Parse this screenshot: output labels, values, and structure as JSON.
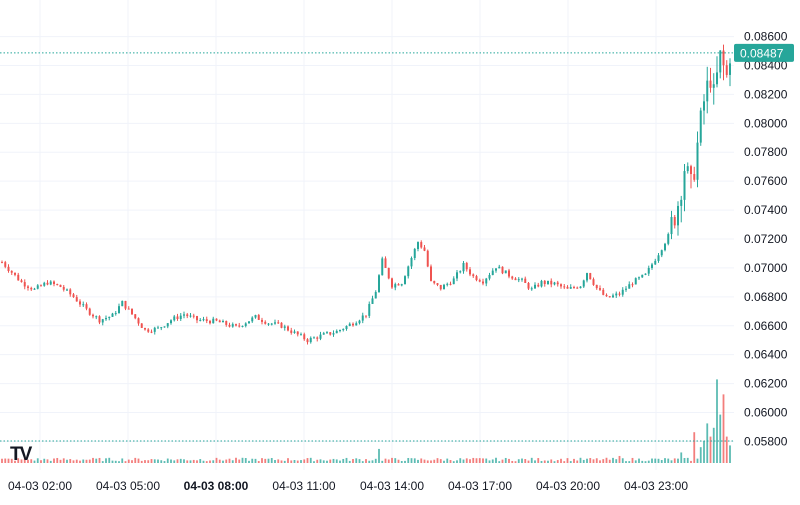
{
  "chart_data": {
    "type": "candlestick",
    "symbol_logo_text": "TV",
    "last_price_label": "0.08487",
    "last_price": 0.08487,
    "ylim": [
      0.0572,
      0.0868
    ],
    "y_ticks": [
      "0.08600",
      "0.08400",
      "0.08200",
      "0.08000",
      "0.07800",
      "0.07600",
      "0.07400",
      "0.07200",
      "0.07000",
      "0.06800",
      "0.06600",
      "0.06400",
      "0.06200",
      "0.06000",
      "0.05800"
    ],
    "x_ticks": [
      {
        "label": "04-03 02:00",
        "bold": false
      },
      {
        "label": "04-03 05:00",
        "bold": false
      },
      {
        "label": "04-03 08:00",
        "bold": true
      },
      {
        "label": "04-03 11:00",
        "bold": false
      },
      {
        "label": "04-03 14:00",
        "bold": false
      },
      {
        "label": "04-03 17:00",
        "bold": false
      },
      {
        "label": "04-03 20:00",
        "bold": false
      },
      {
        "label": "04-03 23:00",
        "bold": false
      }
    ],
    "price_keypoints": [
      [
        0,
        0.0704
      ],
      [
        6,
        0.069
      ],
      [
        10,
        0.0685
      ],
      [
        14,
        0.069
      ],
      [
        18,
        0.0687
      ],
      [
        22,
        0.068
      ],
      [
        26,
        0.0671
      ],
      [
        30,
        0.0664
      ],
      [
        34,
        0.0667
      ],
      [
        37,
        0.0676
      ],
      [
        40,
        0.0668
      ],
      [
        44,
        0.0657
      ],
      [
        48,
        0.0658
      ],
      [
        52,
        0.0664
      ],
      [
        56,
        0.0668
      ],
      [
        60,
        0.0664
      ],
      [
        66,
        0.0663
      ],
      [
        72,
        0.0659
      ],
      [
        78,
        0.0666
      ],
      [
        82,
        0.0662
      ],
      [
        86,
        0.066
      ],
      [
        90,
        0.0655
      ],
      [
        94,
        0.065
      ],
      [
        98,
        0.0653
      ],
      [
        103,
        0.0656
      ],
      [
        108,
        0.0662
      ],
      [
        112,
        0.0668
      ],
      [
        115,
        0.0684
      ],
      [
        117,
        0.0705
      ],
      [
        120,
        0.0688
      ],
      [
        123,
        0.069
      ],
      [
        126,
        0.0707
      ],
      [
        128,
        0.0718
      ],
      [
        130,
        0.0712
      ],
      [
        132,
        0.069
      ],
      [
        135,
        0.0686
      ],
      [
        139,
        0.0692
      ],
      [
        142,
        0.0702
      ],
      [
        145,
        0.0694
      ],
      [
        148,
        0.0691
      ],
      [
        152,
        0.0701
      ],
      [
        156,
        0.0695
      ],
      [
        160,
        0.0691
      ],
      [
        163,
        0.0685
      ],
      [
        166,
        0.069
      ],
      [
        170,
        0.0689
      ],
      [
        174,
        0.0685
      ],
      [
        178,
        0.0688
      ],
      [
        180,
        0.0697
      ],
      [
        183,
        0.0686
      ],
      [
        186,
        0.0679
      ],
      [
        190,
        0.0682
      ],
      [
        194,
        0.069
      ],
      [
        198,
        0.0695
      ],
      [
        202,
        0.071
      ],
      [
        205,
        0.0722
      ],
      [
        208,
        0.0745
      ],
      [
        210,
        0.077
      ],
      [
        212,
        0.0755
      ],
      [
        214,
        0.0785
      ],
      [
        216,
        0.0815
      ],
      [
        218,
        0.0833
      ],
      [
        219,
        0.0818
      ],
      [
        221,
        0.0845
      ],
      [
        223,
        0.0832
      ],
      [
        224,
        0.0849
      ]
    ],
    "volume_spikes": [
      [
        116,
        0.16
      ],
      [
        190,
        0.08
      ],
      [
        209,
        0.12
      ],
      [
        213,
        0.35
      ],
      [
        215,
        0.18
      ],
      [
        216,
        0.25
      ],
      [
        217,
        0.45
      ],
      [
        218,
        0.3
      ],
      [
        219,
        0.4
      ],
      [
        220,
        0.95
      ],
      [
        221,
        0.55
      ],
      [
        222,
        0.78
      ],
      [
        223,
        0.3
      ],
      [
        224,
        0.2
      ]
    ],
    "colors": {
      "up": "#26a69a",
      "down": "#ef5350",
      "price_line": "#26a69a",
      "grid": "#f0f3fa",
      "axis_text": "#131722"
    }
  }
}
